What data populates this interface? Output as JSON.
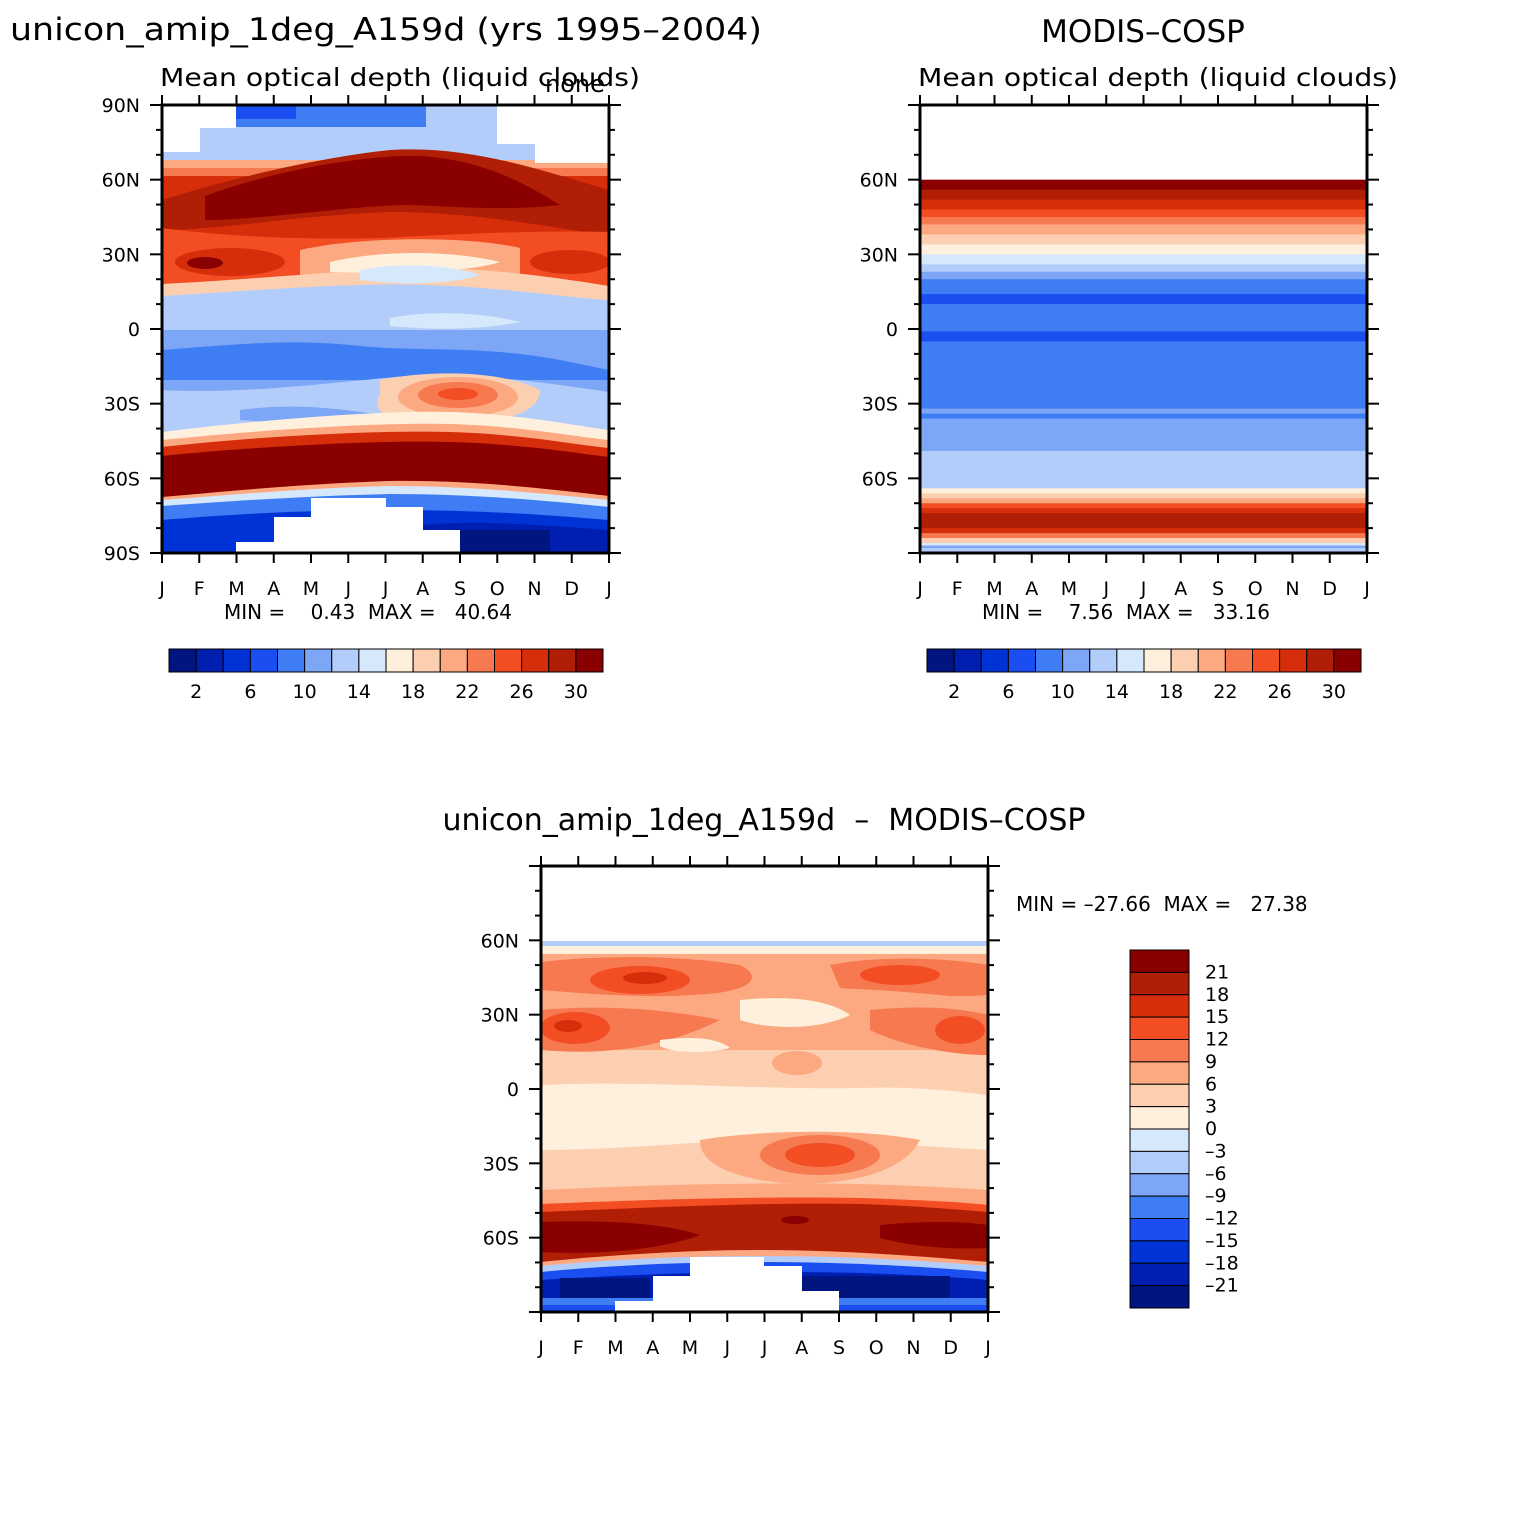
{
  "chart_data": [
    {
      "type": "heatmap",
      "id": "model",
      "title": "unicon_amip_1deg_A159d (yrs 1995–2004)",
      "subtitle": "Mean optical depth (liquid clouds)",
      "corner_label": "none",
      "x_tick_labels": [
        "J",
        "F",
        "M",
        "A",
        "M",
        "J",
        "J",
        "A",
        "S",
        "O",
        "N",
        "D",
        "J"
      ],
      "y_tick_labels": [
        "90N",
        "60N",
        "30N",
        "0",
        "30S",
        "60S",
        "90S"
      ],
      "y_tick_values": [
        90,
        60,
        30,
        0,
        -30,
        -60,
        -90
      ],
      "ylim": [
        -90,
        90
      ],
      "stats_text": "MIN =    0.43  MAX =   40.64",
      "colorbar_labels": [
        "2",
        "6",
        "10",
        "14",
        "18",
        "22",
        "26",
        "30"
      ],
      "colorbar_levels": [
        2,
        4,
        6,
        8,
        10,
        12,
        14,
        16,
        18,
        20,
        22,
        24,
        26,
        28,
        30
      ],
      "colorbar_colors": [
        "#00157f",
        "#001fb0",
        "#0033d6",
        "#1a4ef0",
        "#3f7df4",
        "#7da6f7",
        "#b3cdfa",
        "#d6e8fc",
        "#fff0de",
        "#fdcfb1",
        "#fca981",
        "#f77950",
        "#f24d23",
        "#d62e0b",
        "#b01e05",
        "#8a0000"
      ]
    },
    {
      "type": "heatmap",
      "id": "obs",
      "title": "MODIS–COSP",
      "subtitle": "Mean optical depth (liquid clouds)",
      "x_tick_labels": [
        "J",
        "F",
        "M",
        "A",
        "M",
        "J",
        "J",
        "A",
        "S",
        "O",
        "N",
        "D",
        "J"
      ],
      "y_tick_labels": [
        "60N",
        "30N",
        "0",
        "30S",
        "60S"
      ],
      "y_tick_values": [
        60,
        30,
        0,
        -30,
        -60
      ],
      "ylim": [
        -90,
        90
      ],
      "stats_text": "MIN =    7.56  MAX =   33.16",
      "colorbar_labels": [
        "2",
        "6",
        "10",
        "14",
        "18",
        "22",
        "26",
        "30"
      ],
      "colorbar_colors": [
        "#00157f",
        "#001fb0",
        "#0033d6",
        "#1a4ef0",
        "#3f7df4",
        "#7da6f7",
        "#b3cdfa",
        "#d6e8fc",
        "#fff0de",
        "#fdcfb1",
        "#fca981",
        "#f77950",
        "#f24d23",
        "#d62e0b",
        "#b01e05",
        "#8a0000"
      ]
    },
    {
      "type": "heatmap",
      "id": "diff",
      "title": "unicon_amip_1deg_A159d  –  MODIS–COSP",
      "x_tick_labels": [
        "J",
        "F",
        "M",
        "A",
        "M",
        "J",
        "J",
        "A",
        "S",
        "O",
        "N",
        "D",
        "J"
      ],
      "y_tick_labels": [
        "60N",
        "30N",
        "0",
        "30S",
        "60S"
      ],
      "y_tick_values": [
        60,
        30,
        0,
        -30,
        -60
      ],
      "ylim": [
        -90,
        90
      ],
      "stats_text": "MIN = –27.66  MAX =   27.38",
      "colorbar_labels": [
        "21",
        "18",
        "15",
        "12",
        "9",
        "6",
        "3",
        "0",
        "–3",
        "–6",
        "–9",
        "–12",
        "–15",
        "–18",
        "–21"
      ],
      "colorbar_levels": [
        21,
        18,
        15,
        12,
        9,
        6,
        3,
        0,
        -3,
        -6,
        -9,
        -12,
        -15,
        -18,
        -21
      ],
      "colorbar_colors": [
        "#8a0000",
        "#b01e05",
        "#d62e0b",
        "#f24d23",
        "#f77950",
        "#fca981",
        "#fdcfb1",
        "#fff0de",
        "#d6e8fc",
        "#b3cdfa",
        "#7da6f7",
        "#3f7df4",
        "#1a4ef0",
        "#0033d6",
        "#001fb0",
        "#00157f"
      ]
    }
  ]
}
